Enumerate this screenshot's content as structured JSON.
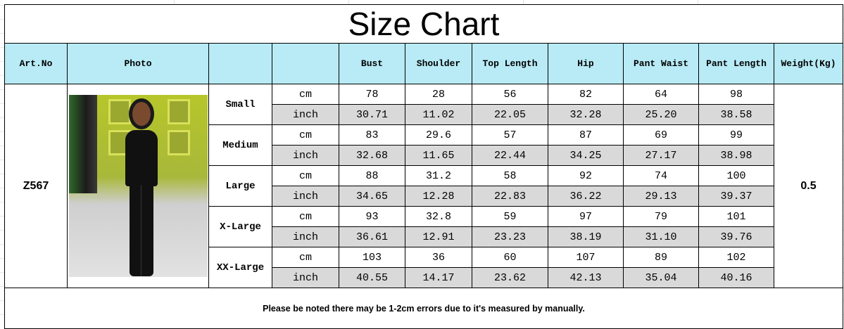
{
  "title": "Size  Chart",
  "headers": [
    "Art.No",
    "Photo",
    "",
    "",
    "Bust",
    "Shoulder",
    "Top Length",
    "Hip",
    "Pant Waist",
    "Pant Length",
    "Weight(Kg)"
  ],
  "art_no": "Z567",
  "weight": "0.5",
  "units": {
    "cm": "cm",
    "inch": "inch"
  },
  "sizes": [
    {
      "name": "Small",
      "cm": [
        "78",
        "28",
        "56",
        "82",
        "64",
        "98"
      ],
      "inch": [
        "30.71",
        "11.02",
        "22.05",
        "32.28",
        "25.20",
        "38.58"
      ]
    },
    {
      "name": "Medium",
      "cm": [
        "83",
        "29.6",
        "57",
        "87",
        "69",
        "99"
      ],
      "inch": [
        "32.68",
        "11.65",
        "22.44",
        "34.25",
        "27.17",
        "38.98"
      ]
    },
    {
      "name": "Large",
      "cm": [
        "88",
        "31.2",
        "58",
        "92",
        "74",
        "100"
      ],
      "inch": [
        "34.65",
        "12.28",
        "22.83",
        "36.22",
        "29.13",
        "39.37"
      ]
    },
    {
      "name": "X-Large",
      "cm": [
        "93",
        "32.8",
        "59",
        "97",
        "79",
        "101"
      ],
      "inch": [
        "36.61",
        "12.91",
        "23.23",
        "38.19",
        "31.10",
        "39.76"
      ]
    },
    {
      "name": "XX-Large",
      "cm": [
        "103",
        "36",
        "60",
        "107",
        "89",
        "102"
      ],
      "inch": [
        "40.55",
        "14.17",
        "23.62",
        "42.13",
        "35.04",
        "40.16"
      ]
    }
  ],
  "note": "Please be noted there may be 1-2cm errors due to it's measured by manually.",
  "colors": {
    "header_bg": "#b8ebf6",
    "inch_row_bg": "#d9d9d9"
  }
}
